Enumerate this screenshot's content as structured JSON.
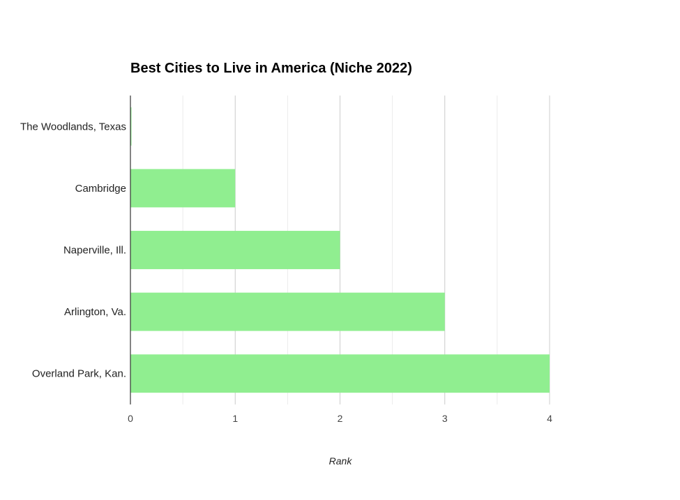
{
  "chart_data": {
    "type": "bar",
    "orientation": "horizontal",
    "title": "Best Cities to Live in America (Niche 2022)",
    "xlabel": "Rank",
    "ylabel": "",
    "categories": [
      "The Woodlands, Texas",
      "Cambridge",
      "Naperville, Ill.",
      "Arlington, Va.",
      "Overland Park, Kan."
    ],
    "values": [
      0,
      1,
      2,
      3,
      4
    ],
    "xlim": [
      0,
      4
    ],
    "xticks": [
      0,
      1,
      2,
      3,
      4
    ],
    "bar_color": "#90ee90",
    "grid": true,
    "legend": "none"
  }
}
